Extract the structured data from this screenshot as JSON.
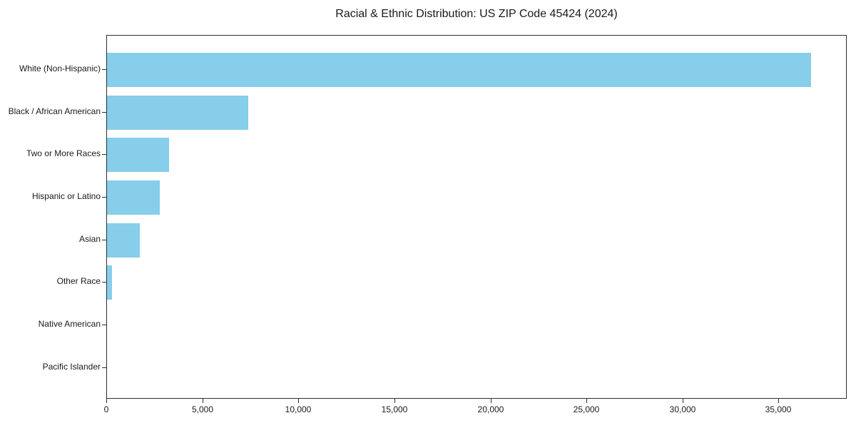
{
  "chart_data": {
    "type": "bar",
    "orientation": "horizontal",
    "title": "Racial & Ethnic Distribution: US ZIP Code 45424 (2024)",
    "categories": [
      "White (Non-Hispanic)",
      "Black / African American",
      "Two or More Races",
      "Hispanic or Latino",
      "Asian",
      "Other Race",
      "Native American",
      "Pacific Islander"
    ],
    "values": [
      36650,
      7340,
      3240,
      2750,
      1700,
      250,
      0,
      0
    ],
    "xlabel": "",
    "ylabel": "",
    "xlim": [
      0,
      38550
    ],
    "xticks": [
      0,
      5000,
      10000,
      15000,
      20000,
      25000,
      30000,
      35000
    ],
    "xtick_labels": [
      "0",
      "5,000",
      "10,000",
      "15,000",
      "20,000",
      "25,000",
      "30,000",
      "35,000"
    ],
    "bar_color": "#87CEEB",
    "axis_color": "#2e2e2e",
    "grid": false,
    "legend": null
  }
}
